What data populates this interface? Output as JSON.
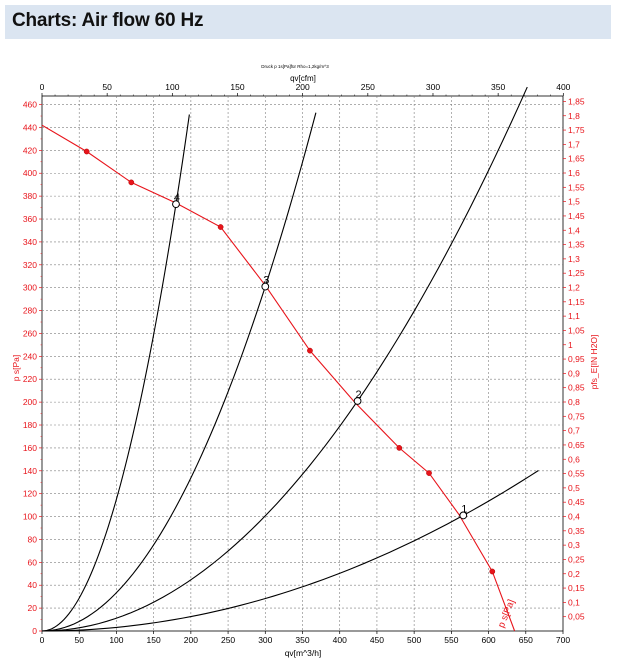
{
  "page": {
    "title": "Charts: Air flow 60 Hz"
  },
  "colors": {
    "header_bg": "#dbe5f1",
    "system_curves": "#000000",
    "fan_curve": "#e8141b",
    "grid": "#7f7f7f"
  },
  "chart_data": {
    "type": "line",
    "subtitle": "Druck p 1s[Pa]für Rho=1,2kg/m^3",
    "xlabel": "qv[m^3/h]",
    "x2label": "qv[cfm]",
    "ylabel": "p s[Pa]",
    "y2label": "pfs_E[IN H2O]",
    "xlim": [
      0,
      700
    ],
    "ylim": [
      0,
      460
    ],
    "x2lim": [
      0,
      400
    ],
    "y2lim": [
      0,
      1.85
    ],
    "xticks": [
      "0",
      "50",
      "100",
      "150",
      "200",
      "250",
      "300",
      "350",
      "400",
      "450",
      "500",
      "550",
      "600",
      "650",
      "700"
    ],
    "x2ticks": [
      "0",
      "50",
      "100",
      "150",
      "200",
      "250",
      "300",
      "350",
      "400"
    ],
    "yticks": [
      "0",
      "20",
      "40",
      "60",
      "80",
      "100",
      "120",
      "140",
      "160",
      "180",
      "200",
      "220",
      "240",
      "260",
      "280",
      "300",
      "320",
      "340",
      "360",
      "380",
      "400",
      "420",
      "440",
      "460"
    ],
    "y2ticks": [
      "0,05",
      "0,1",
      "0,15",
      "0,2",
      "0,25",
      "0,3",
      "0,35",
      "0,4",
      "0,45",
      "0,5",
      "0,55",
      "0,6",
      "0,65",
      "0,7",
      "0,75",
      "0,8",
      "0,85",
      "0,9",
      "0,95",
      "1",
      "1,05",
      "1,1",
      "1,15",
      "1,2",
      "1,25",
      "1,3",
      "1,35",
      "1,4",
      "1,45",
      "1,5",
      "1,55",
      "1,6",
      "1,65",
      "1,7",
      "1,75",
      "1,8",
      "1,85"
    ],
    "grid": true,
    "fan_curve": {
      "label": "p s[Pa]",
      "points": [
        [
          0,
          442
        ],
        [
          60,
          419
        ],
        [
          120,
          392
        ],
        [
          180,
          374
        ],
        [
          240,
          353
        ],
        [
          300,
          302
        ],
        [
          360,
          245
        ],
        [
          420,
          200
        ],
        [
          480,
          160
        ],
        [
          520,
          138
        ],
        [
          560,
          102
        ],
        [
          605,
          52
        ],
        [
          635,
          0
        ]
      ],
      "markers": [
        [
          60,
          419
        ],
        [
          120,
          392
        ],
        [
          240,
          353
        ],
        [
          360,
          245
        ],
        [
          480,
          160
        ],
        [
          520,
          138
        ],
        [
          605,
          52
        ]
      ]
    },
    "system_curves": [
      {
        "label": "4",
        "op_point": [
          180,
          373
        ],
        "x_max": 198
      },
      {
        "label": "3",
        "op_point": [
          300,
          301
        ],
        "x_max": 368
      },
      {
        "label": "2",
        "op_point": [
          424,
          201
        ],
        "x_max": 652
      },
      {
        "label": "1",
        "op_point": [
          566,
          101
        ],
        "x_max": 667
      }
    ]
  }
}
